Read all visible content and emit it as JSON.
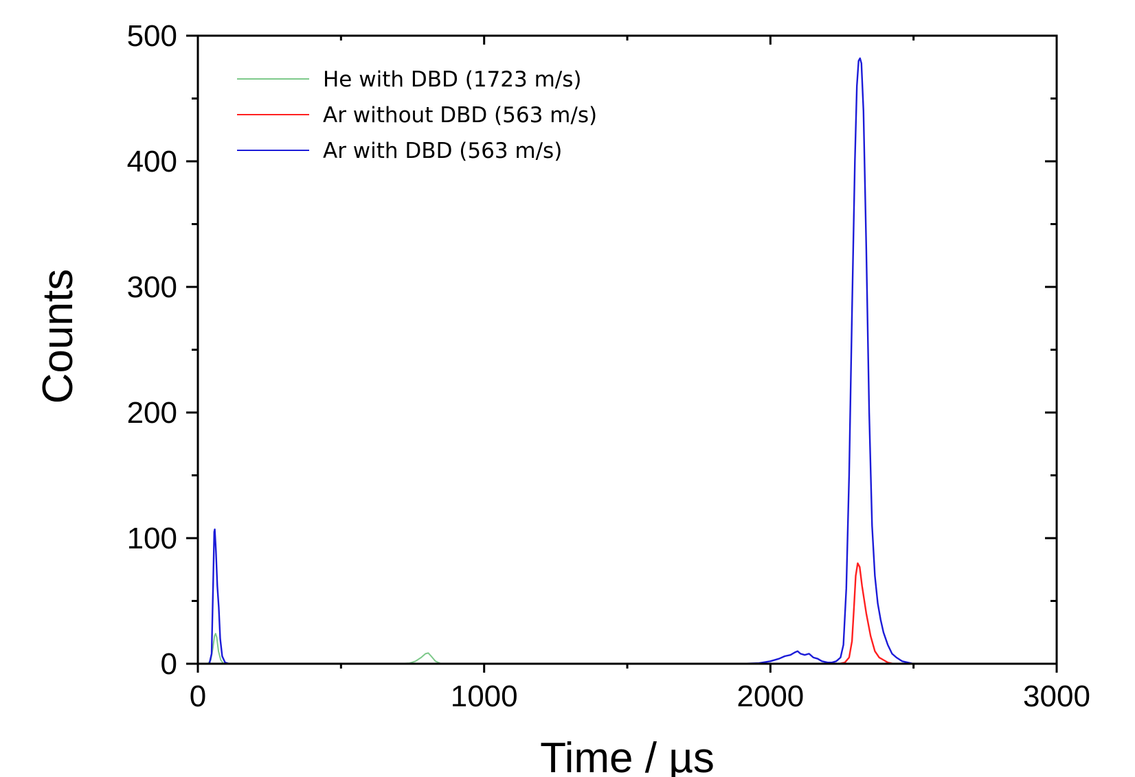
{
  "chart_data": {
    "type": "line",
    "title": "",
    "xlabel": "Time / µs",
    "ylabel": "Counts",
    "xlim": [
      0,
      3000
    ],
    "ylim": [
      0,
      500
    ],
    "x_ticks": [
      0,
      1000,
      2000,
      3000
    ],
    "y_ticks": [
      0,
      100,
      200,
      300,
      400,
      500
    ],
    "x_tick_labels": [
      "0",
      "1000",
      "2000",
      "3000"
    ],
    "y_tick_labels": [
      "0",
      "100",
      "200",
      "300",
      "400",
      "500"
    ],
    "grid": false,
    "legend_position": "top-left",
    "series": [
      {
        "name": "He with DBD  (1723 m/s)",
        "color": "#7dc98a",
        "points": [
          [
            0,
            0
          ],
          [
            35,
            0
          ],
          [
            45,
            3
          ],
          [
            52,
            12
          ],
          [
            58,
            22
          ],
          [
            62,
            24
          ],
          [
            66,
            21
          ],
          [
            72,
            10
          ],
          [
            80,
            3
          ],
          [
            90,
            0
          ],
          [
            700,
            0
          ],
          [
            740,
            0.5
          ],
          [
            760,
            2
          ],
          [
            780,
            5
          ],
          [
            795,
            8
          ],
          [
            805,
            8.5
          ],
          [
            815,
            6
          ],
          [
            830,
            2
          ],
          [
            850,
            0
          ],
          [
            3000,
            0
          ]
        ]
      },
      {
        "name": "Ar without DBD  (563 m/s)",
        "color": "#ff2020",
        "points": [
          [
            0,
            0
          ],
          [
            2240,
            0
          ],
          [
            2260,
            1
          ],
          [
            2275,
            5
          ],
          [
            2285,
            18
          ],
          [
            2292,
            45
          ],
          [
            2298,
            70
          ],
          [
            2305,
            80
          ],
          [
            2312,
            77
          ],
          [
            2320,
            62
          ],
          [
            2335,
            40
          ],
          [
            2350,
            22
          ],
          [
            2365,
            10
          ],
          [
            2380,
            5
          ],
          [
            2395,
            3
          ],
          [
            2410,
            1
          ],
          [
            2430,
            0
          ],
          [
            3000,
            0
          ]
        ]
      },
      {
        "name": "Ar with DBD  (563 m/s)",
        "color": "#1c1cd8",
        "points": [
          [
            0,
            0
          ],
          [
            40,
            0
          ],
          [
            48,
            8
          ],
          [
            53,
            60
          ],
          [
            57,
            105
          ],
          [
            59,
            107
          ],
          [
            63,
            90
          ],
          [
            68,
            62
          ],
          [
            73,
            45
          ],
          [
            78,
            20
          ],
          [
            85,
            6
          ],
          [
            95,
            1
          ],
          [
            110,
            0
          ],
          [
            1900,
            0
          ],
          [
            1960,
            0.5
          ],
          [
            2000,
            2
          ],
          [
            2030,
            4
          ],
          [
            2050,
            6
          ],
          [
            2070,
            7
          ],
          [
            2085,
            9
          ],
          [
            2095,
            10
          ],
          [
            2105,
            8
          ],
          [
            2120,
            7
          ],
          [
            2135,
            8
          ],
          [
            2150,
            5
          ],
          [
            2165,
            4
          ],
          [
            2180,
            2
          ],
          [
            2200,
            1
          ],
          [
            2215,
            1
          ],
          [
            2230,
            2
          ],
          [
            2245,
            5
          ],
          [
            2255,
            15
          ],
          [
            2265,
            60
          ],
          [
            2275,
            150
          ],
          [
            2285,
            280
          ],
          [
            2295,
            400
          ],
          [
            2302,
            460
          ],
          [
            2308,
            480
          ],
          [
            2313,
            482
          ],
          [
            2318,
            478
          ],
          [
            2325,
            440
          ],
          [
            2335,
            330
          ],
          [
            2345,
            200
          ],
          [
            2355,
            110
          ],
          [
            2365,
            70
          ],
          [
            2375,
            48
          ],
          [
            2385,
            35
          ],
          [
            2395,
            25
          ],
          [
            2410,
            15
          ],
          [
            2425,
            8
          ],
          [
            2440,
            5
          ],
          [
            2460,
            2
          ],
          [
            2480,
            1
          ],
          [
            2500,
            0
          ],
          [
            3000,
            0
          ]
        ]
      }
    ]
  }
}
